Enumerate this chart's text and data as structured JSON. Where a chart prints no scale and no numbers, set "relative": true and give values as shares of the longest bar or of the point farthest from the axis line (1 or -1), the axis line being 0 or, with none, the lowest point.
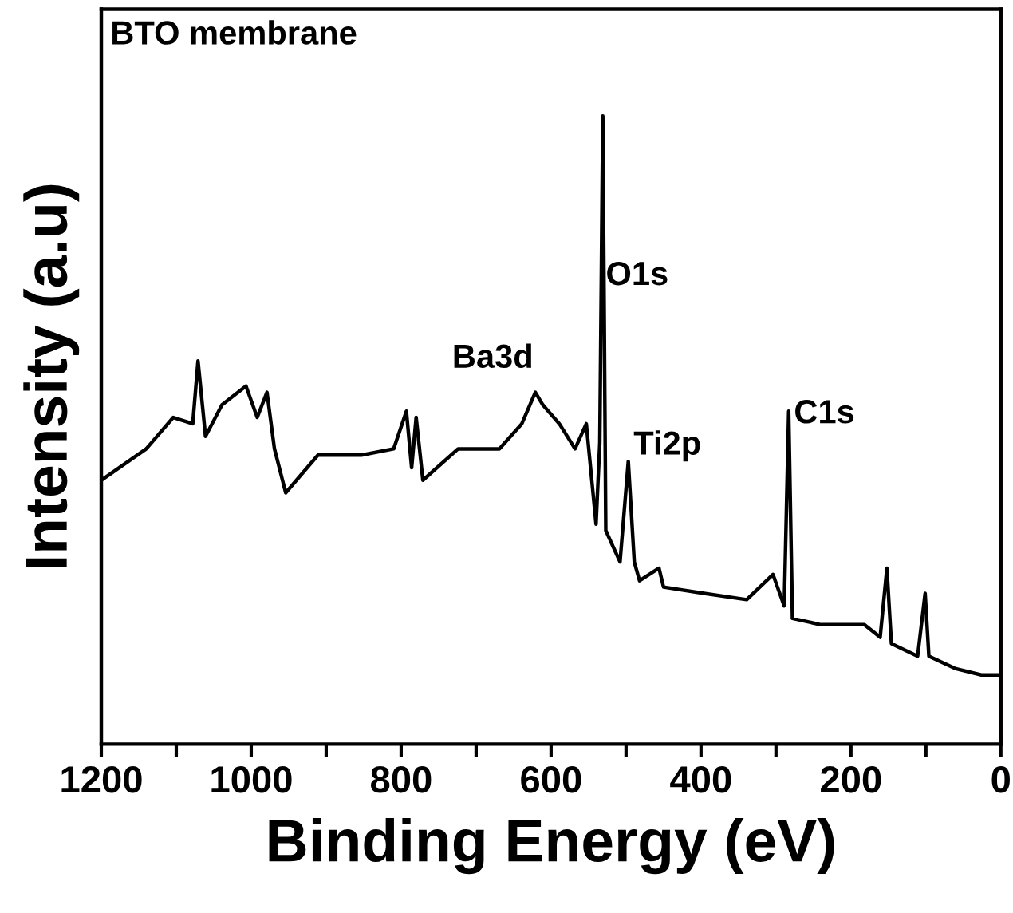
{
  "chart_data": {
    "type": "line",
    "relative": true,
    "xlabel": "Binding Energy (eV)",
    "ylabel": "Intensity (a.u)",
    "annotations": [
      "BTO membrane",
      "Ba3d",
      {
        "text": "O1s",
        "x": 527,
        "y": 0.72
      },
      {
        "text": "Ti2p",
        "x": 490,
        "y": 0.45
      },
      {
        "text": "C1s",
        "x": 276,
        "y": 0.5
      }
    ],
    "xlim": [
      1200,
      0
    ],
    "xticks": [
      1200,
      {
        "value": 1100,
        "label": null
      },
      1000,
      {
        "value": 900,
        "label": null
      },
      800,
      {
        "value": 700,
        "label": null
      },
      600,
      {
        "value": 500,
        "label": null
      },
      400,
      {
        "value": 300,
        "label": null
      },
      200,
      {
        "value": 100,
        "label": null
      },
      0
    ],
    "series": [
      {
        "color": "#000000",
        "x": [
          1200,
          1140,
          1104,
          1078,
          1071,
          1061,
          1039,
          1007,
          992,
          979,
          969,
          954,
          911,
          853,
          810,
          793,
          786,
          780,
          771,
          724,
          669,
          639,
          621,
          611,
          589,
          568,
          553,
          540,
          535,
          531,
          527,
          508,
          497,
          489,
          482,
          456,
          450,
          396,
          339,
          304,
          289,
          283,
          278,
          240,
          182,
          161,
          152,
          146,
          111,
          101,
          96,
          60,
          26,
          4
        ],
        "values": [
          0.42,
          0.47,
          0.52,
          0.51,
          0.61,
          0.49,
          0.54,
          0.57,
          0.52,
          0.56,
          0.47,
          0.4,
          0.46,
          0.46,
          0.47,
          0.53,
          0.44,
          0.52,
          0.42,
          0.47,
          0.47,
          0.51,
          0.56,
          0.54,
          0.51,
          0.47,
          0.51,
          0.35,
          0.48,
          1.0,
          0.34,
          0.29,
          0.45,
          0.29,
          0.26,
          0.28,
          0.25,
          0.24,
          0.23,
          0.27,
          0.22,
          0.53,
          0.2,
          0.19,
          0.19,
          0.17,
          0.28,
          0.16,
          0.14,
          0.24,
          0.14,
          0.12,
          0.11,
          0.11
        ]
      }
    ]
  }
}
